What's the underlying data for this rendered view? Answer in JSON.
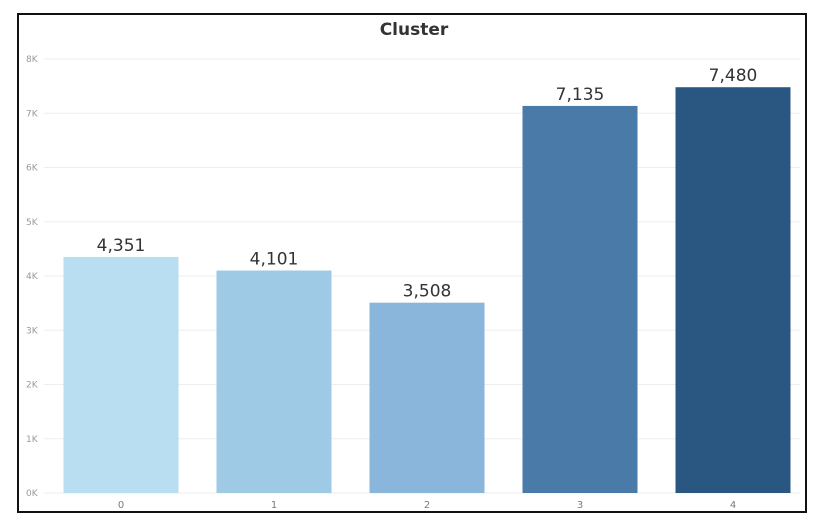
{
  "chart_data": {
    "type": "bar",
    "title": "Cluster",
    "xlabel": "",
    "ylabel": "",
    "categories": [
      "0",
      "1",
      "2",
      "3",
      "4"
    ],
    "values": [
      4351,
      4101,
      3508,
      7135,
      7480
    ],
    "value_labels": [
      "4,351",
      "4,101",
      "3,508",
      "7,135",
      "7,480"
    ],
    "colors": [
      "#b9ddf1",
      "#9fcae6",
      "#8ab6db",
      "#4a7aa8",
      "#2a5781"
    ],
    "ylim": [
      0,
      8000
    ],
    "yticks": [
      0,
      1000,
      2000,
      3000,
      4000,
      5000,
      6000,
      7000,
      8000
    ],
    "ytick_labels": [
      "0K",
      "1K",
      "2K",
      "3K",
      "4K",
      "5K",
      "6K",
      "7K",
      "8K"
    ],
    "grid": true,
    "legend": "none"
  }
}
